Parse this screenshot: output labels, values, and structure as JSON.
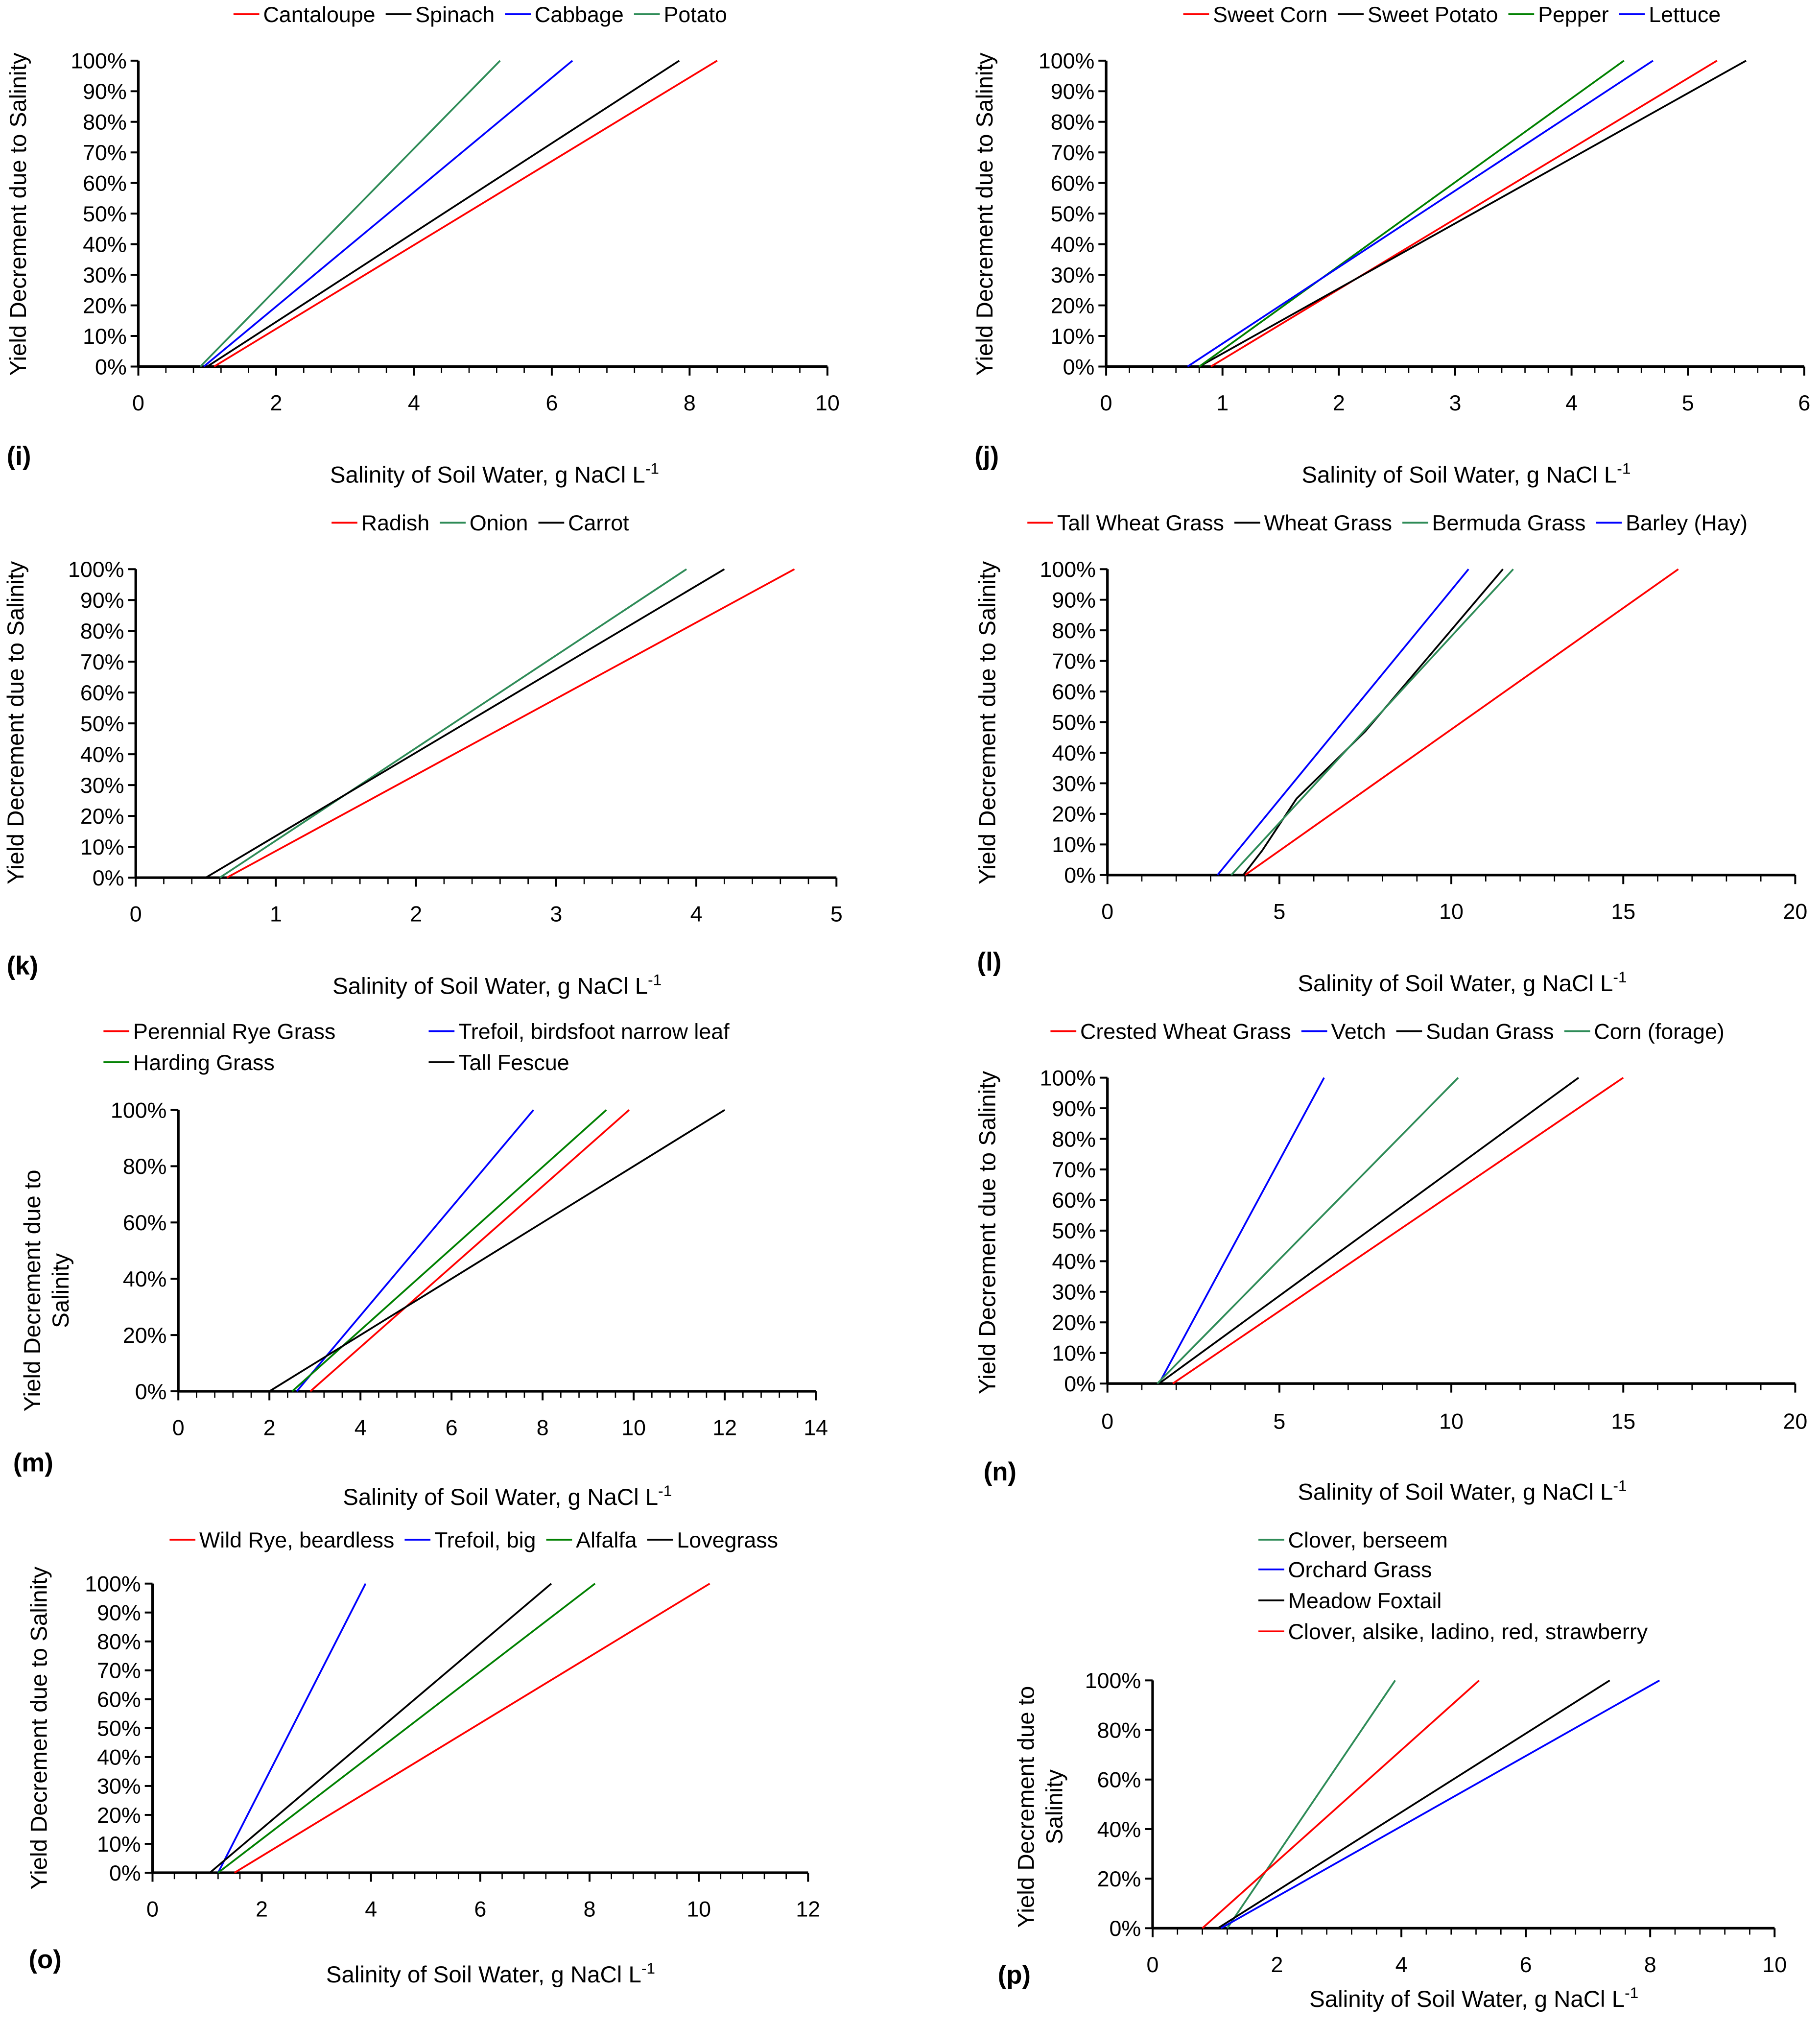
{
  "chart_data": [
    {
      "id": "i",
      "panel_label": "(i)",
      "type": "line",
      "xlabel": "Salinity of Soil Water, g NaCl L",
      "xlabel_sup": "-1",
      "ylabel": [
        "Yield Decrement due to Salinity"
      ],
      "xlim": [
        0,
        10
      ],
      "xticks": [
        "0",
        "2",
        "4",
        "6",
        "8",
        "10"
      ],
      "ylim": [
        0,
        100
      ],
      "yticks": [
        "0%",
        "10%",
        "20%",
        "30%",
        "40%",
        "50%",
        "60%",
        "70%",
        "80%",
        "90%",
        "100%"
      ],
      "series": [
        {
          "name": "Cantaloupe",
          "color": "#ff0000",
          "points": [
            [
              1.1,
              0
            ],
            [
              8.4,
              100
            ]
          ]
        },
        {
          "name": "Spinach",
          "color": "#000000",
          "points": [
            [
              1.0,
              0
            ],
            [
              7.85,
              100
            ]
          ]
        },
        {
          "name": "Cabbage",
          "color": "#0000ff",
          "points": [
            [
              0.95,
              0
            ],
            [
              6.3,
              100
            ]
          ]
        },
        {
          "name": "Potato",
          "color": "#2e8b57",
          "points": [
            [
              0.9,
              0
            ],
            [
              5.25,
              100
            ]
          ]
        }
      ]
    },
    {
      "id": "j",
      "panel_label": "(j)",
      "type": "line",
      "xlabel": "Salinity of Soil Water, g NaCl L",
      "xlabel_sup": "-1",
      "ylabel": [
        "Yield Decrement due to Salinity"
      ],
      "xlim": [
        0,
        6
      ],
      "xticks": [
        "0",
        "1",
        "2",
        "3",
        "4",
        "5",
        "6"
      ],
      "ylim": [
        0,
        100
      ],
      "yticks": [
        "0%",
        "10%",
        "20%",
        "30%",
        "40%",
        "50%",
        "60%",
        "70%",
        "80%",
        "90%",
        "100%"
      ],
      "series": [
        {
          "name": "Sweet Corn",
          "color": "#ff0000",
          "points": [
            [
              0.9,
              0
            ],
            [
              5.25,
              100
            ]
          ]
        },
        {
          "name": "Sweet Potato",
          "color": "#000000",
          "points": [
            [
              0.8,
              0
            ],
            [
              5.5,
              100
            ]
          ]
        },
        {
          "name": "Pepper",
          "color": "#008000",
          "points": [
            [
              0.8,
              0
            ],
            [
              4.45,
              100
            ]
          ]
        },
        {
          "name": "Lettuce",
          "color": "#0000ff",
          "points": [
            [
              0.7,
              0
            ],
            [
              4.7,
              100
            ]
          ]
        }
      ]
    },
    {
      "id": "k",
      "panel_label": "(k)",
      "type": "line",
      "xlabel": "Salinity of Soil Water, g NaCl L",
      "xlabel_sup": "-1",
      "ylabel": [
        "Yield Decrement due to Salinity"
      ],
      "xlim": [
        0,
        5
      ],
      "xticks": [
        "0",
        "1",
        "2",
        "3",
        "4",
        "5"
      ],
      "ylim": [
        0,
        100
      ],
      "yticks": [
        "0%",
        "10%",
        "20%",
        "30%",
        "40%",
        "50%",
        "60%",
        "70%",
        "80%",
        "90%",
        "100%"
      ],
      "series": [
        {
          "name": "Radish",
          "color": "#ff0000",
          "points": [
            [
              0.65,
              0
            ],
            [
              4.7,
              100
            ]
          ]
        },
        {
          "name": "Onion",
          "color": "#2e8b57",
          "points": [
            [
              0.6,
              0
            ],
            [
              3.93,
              100
            ]
          ]
        },
        {
          "name": "Carrot",
          "color": "#000000",
          "points": [
            [
              0.5,
              0
            ],
            [
              4.2,
              100
            ]
          ]
        }
      ]
    },
    {
      "id": "l",
      "panel_label": "(l)",
      "type": "line",
      "xlabel": "Salinity of Soil Water, g NaCl L",
      "xlabel_sup": "-1",
      "ylabel": [
        "Yield Decrement due to Salinity"
      ],
      "xlim": [
        0,
        20
      ],
      "xticks": [
        "0",
        "5",
        "10",
        "15",
        "20"
      ],
      "ylim": [
        0,
        100
      ],
      "yticks": [
        "0%",
        "10%",
        "20%",
        "30%",
        "40%",
        "50%",
        "60%",
        "70%",
        "80%",
        "90%",
        "100%"
      ],
      "series": [
        {
          "name": "Tall Wheat Grass",
          "color": "#ff0000",
          "points": [
            [
              4.0,
              0
            ],
            [
              16.6,
              100
            ]
          ]
        },
        {
          "name": "Wheat Grass",
          "color": "#000000",
          "points": [
            [
              3.95,
              0
            ],
            [
              4.5,
              8
            ],
            [
              5.5,
              25
            ],
            [
              7.5,
              47
            ],
            [
              11.5,
              100
            ]
          ]
        },
        {
          "name": "Bermuda Grass",
          "color": "#2e8b57",
          "points": [
            [
              3.6,
              0
            ],
            [
              11.8,
              100
            ]
          ]
        },
        {
          "name": "Barley (Hay)",
          "color": "#0000ff",
          "points": [
            [
              3.2,
              0
            ],
            [
              10.5,
              100
            ]
          ]
        }
      ]
    },
    {
      "id": "m",
      "panel_label": "(m)",
      "type": "line",
      "xlabel": "Salinity of Soil Water, g NaCl L",
      "xlabel_sup": "-1",
      "ylabel": [
        "Yield Decrement due to",
        "Salinity"
      ],
      "xlim": [
        0,
        14
      ],
      "xticks": [
        "0",
        "2",
        "4",
        "6",
        "8",
        "10",
        "12",
        "14"
      ],
      "ylim": [
        0,
        100
      ],
      "yticks": [
        "0%",
        "20%",
        "40%",
        "60%",
        "80%",
        "100%"
      ],
      "series": [
        {
          "name": "Perennial Rye Grass",
          "color": "#ff0000",
          "points": [
            [
              2.9,
              0
            ],
            [
              9.9,
              100
            ]
          ]
        },
        {
          "name": "Trefoil, birdsfoot narrow leaf",
          "color": "#0000ff",
          "points": [
            [
              2.6,
              0
            ],
            [
              7.8,
              100
            ]
          ]
        },
        {
          "name": "Harding Grass",
          "color": "#008000",
          "points": [
            [
              2.5,
              0
            ],
            [
              9.4,
              100
            ]
          ]
        },
        {
          "name": "Tall Fescue",
          "color": "#000000",
          "points": [
            [
              2.0,
              0
            ],
            [
              12.0,
              100
            ]
          ]
        }
      ]
    },
    {
      "id": "n",
      "panel_label": "(n)",
      "type": "line",
      "xlabel": "Salinity of Soil Water, g NaCl L",
      "xlabel_sup": "-1",
      "ylabel": [
        "Yield Decrement due to Salinity"
      ],
      "xlim": [
        0,
        20
      ],
      "xticks": [
        "0",
        "5",
        "10",
        "15",
        "20"
      ],
      "ylim": [
        0,
        100
      ],
      "yticks": [
        "0%",
        "10%",
        "20%",
        "30%",
        "40%",
        "50%",
        "60%",
        "70%",
        "80%",
        "90%",
        "100%"
      ],
      "series": [
        {
          "name": "Crested Wheat Grass",
          "color": "#ff0000",
          "points": [
            [
              1.9,
              0
            ],
            [
              15.0,
              100
            ]
          ]
        },
        {
          "name": "Vetch",
          "color": "#0000ff",
          "points": [
            [
              1.5,
              0
            ],
            [
              6.3,
              100
            ]
          ]
        },
        {
          "name": "Sudan Grass",
          "color": "#000000",
          "points": [
            [
              1.5,
              0
            ],
            [
              13.7,
              100
            ]
          ]
        },
        {
          "name": "Corn (forage)",
          "color": "#2e8b57",
          "points": [
            [
              1.45,
              0
            ],
            [
              10.2,
              100
            ]
          ]
        }
      ]
    },
    {
      "id": "o",
      "panel_label": "(o)",
      "type": "line",
      "xlabel": "Salinity of Soil Water, g NaCl L",
      "xlabel_sup": "-1",
      "ylabel": [
        "Yield Decrement due to Salinity"
      ],
      "xlim": [
        0,
        12
      ],
      "xticks": [
        "0",
        "2",
        "4",
        "6",
        "8",
        "10",
        "12"
      ],
      "ylim": [
        0,
        100
      ],
      "yticks": [
        "0%",
        "10%",
        "20%",
        "30%",
        "40%",
        "50%",
        "60%",
        "70%",
        "80%",
        "90%",
        "100%"
      ],
      "series": [
        {
          "name": "Wild Rye, beardless",
          "color": "#ff0000",
          "points": [
            [
              1.5,
              0
            ],
            [
              10.2,
              100
            ]
          ]
        },
        {
          "name": "Trefoil, big",
          "color": "#0000ff",
          "points": [
            [
              1.2,
              0
            ],
            [
              3.9,
              100
            ]
          ]
        },
        {
          "name": "Alfalfa",
          "color": "#008000",
          "points": [
            [
              1.2,
              0
            ],
            [
              8.1,
              100
            ]
          ]
        },
        {
          "name": "Lovegrass",
          "color": "#000000",
          "points": [
            [
              1.05,
              0
            ],
            [
              7.3,
              100
            ]
          ]
        }
      ]
    },
    {
      "id": "p",
      "panel_label": "(p)",
      "type": "line",
      "xlabel": "Salinity of Soil Water, g NaCl L",
      "xlabel_sup": "-1",
      "ylabel": [
        "Yield Decrement due to",
        "Salinity"
      ],
      "xlim": [
        0,
        10
      ],
      "xticks": [
        "0",
        "2",
        "4",
        "6",
        "8",
        "10"
      ],
      "ylim": [
        0,
        100
      ],
      "yticks": [
        "0%",
        "20%",
        "40%",
        "60%",
        "80%",
        "100%"
      ],
      "series": [
        {
          "name": "Clover, berseem",
          "color": "#2e8b57",
          "points": [
            [
              1.2,
              0
            ],
            [
              3.9,
              100
            ]
          ]
        },
        {
          "name": "Orchard Grass",
          "color": "#0000ff",
          "points": [
            [
              1.1,
              0
            ],
            [
              8.15,
              100
            ]
          ]
        },
        {
          "name": "Meadow Foxtail",
          "color": "#000000",
          "points": [
            [
              1.05,
              0
            ],
            [
              7.35,
              100
            ]
          ]
        },
        {
          "name": "Clover, alsike, ladino, red, strawberry",
          "color": "#ff0000",
          "points": [
            [
              0.8,
              0
            ],
            [
              5.25,
              100
            ]
          ]
        }
      ]
    }
  ]
}
